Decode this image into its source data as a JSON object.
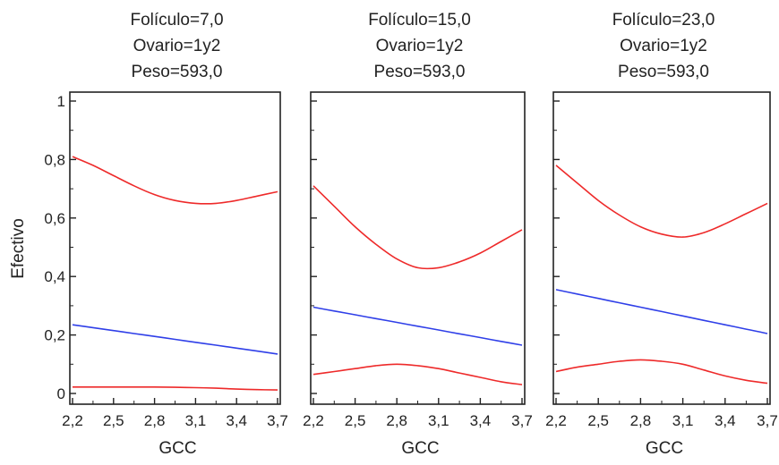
{
  "colors": {
    "fit": "#2f3fe8",
    "limits": "#ee2a2a",
    "frame": "#222222",
    "text": "#222222"
  },
  "y_axis_label": "Efectivo",
  "chart_data": [
    {
      "type": "line",
      "title_lines": [
        "Folículo=7,0",
        "Ovario=1y2",
        "Peso=593,0"
      ],
      "xlabel": "GCC",
      "ylabel": "Efectivo",
      "xlim": [
        2.2,
        3.7
      ],
      "ylim": [
        0,
        1
      ],
      "x_ticks": [
        "2,2",
        "2,5",
        "2,8",
        "3,1",
        "3,4",
        "3,7"
      ],
      "y_ticks": [
        "0",
        "0,2",
        "0,4",
        "0,6",
        "0,8",
        "1"
      ],
      "x": [
        2.2,
        2.35,
        2.5,
        2.65,
        2.8,
        2.95,
        3.1,
        3.25,
        3.4,
        3.55,
        3.7
      ],
      "series": [
        {
          "role": "upper",
          "values": [
            0.81,
            0.78,
            0.745,
            0.71,
            0.68,
            0.66,
            0.65,
            0.65,
            0.66,
            0.675,
            0.69
          ]
        },
        {
          "role": "fit",
          "values": [
            0.235,
            0.225,
            0.215,
            0.205,
            0.195,
            0.185,
            0.175,
            0.165,
            0.155,
            0.145,
            0.135
          ]
        },
        {
          "role": "lower",
          "values": [
            0.022,
            0.022,
            0.022,
            0.022,
            0.022,
            0.021,
            0.02,
            0.018,
            0.015,
            0.013,
            0.012
          ]
        }
      ]
    },
    {
      "type": "line",
      "title_lines": [
        "Folículo=15,0",
        "Ovario=1y2",
        "Peso=593,0"
      ],
      "xlabel": "GCC",
      "ylabel": "",
      "xlim": [
        2.2,
        3.7
      ],
      "ylim": [
        0,
        1
      ],
      "x_ticks": [
        "2,2",
        "2,5",
        "2,8",
        "3,1",
        "3,4",
        "3,7"
      ],
      "y_ticks": [],
      "x": [
        2.2,
        2.35,
        2.5,
        2.65,
        2.8,
        2.95,
        3.1,
        3.25,
        3.4,
        3.55,
        3.7
      ],
      "series": [
        {
          "role": "upper",
          "values": [
            0.71,
            0.64,
            0.57,
            0.51,
            0.46,
            0.43,
            0.43,
            0.45,
            0.48,
            0.52,
            0.56
          ]
        },
        {
          "role": "fit",
          "values": [
            0.295,
            0.282,
            0.269,
            0.256,
            0.243,
            0.23,
            0.217,
            0.204,
            0.191,
            0.178,
            0.165
          ]
        },
        {
          "role": "lower",
          "values": [
            0.065,
            0.075,
            0.085,
            0.095,
            0.1,
            0.095,
            0.085,
            0.07,
            0.055,
            0.04,
            0.03
          ]
        }
      ]
    },
    {
      "type": "line",
      "title_lines": [
        "Folículo=23,0",
        "Ovario=1y2",
        "Peso=593,0"
      ],
      "xlabel": "GCC",
      "ylabel": "",
      "xlim": [
        2.2,
        3.7
      ],
      "ylim": [
        0,
        1
      ],
      "x_ticks": [
        "2,2",
        "2,5",
        "2,8",
        "3,1",
        "3,4",
        "3,7"
      ],
      "y_ticks": [],
      "x": [
        2.2,
        2.35,
        2.5,
        2.65,
        2.8,
        2.95,
        3.1,
        3.25,
        3.4,
        3.55,
        3.7
      ],
      "series": [
        {
          "role": "upper",
          "values": [
            0.78,
            0.72,
            0.66,
            0.61,
            0.57,
            0.545,
            0.535,
            0.55,
            0.58,
            0.615,
            0.65
          ]
        },
        {
          "role": "fit",
          "values": [
            0.355,
            0.34,
            0.325,
            0.31,
            0.295,
            0.28,
            0.265,
            0.25,
            0.235,
            0.22,
            0.205
          ]
        },
        {
          "role": "lower",
          "values": [
            0.075,
            0.09,
            0.1,
            0.11,
            0.115,
            0.11,
            0.1,
            0.08,
            0.06,
            0.045,
            0.035
          ]
        }
      ]
    }
  ]
}
